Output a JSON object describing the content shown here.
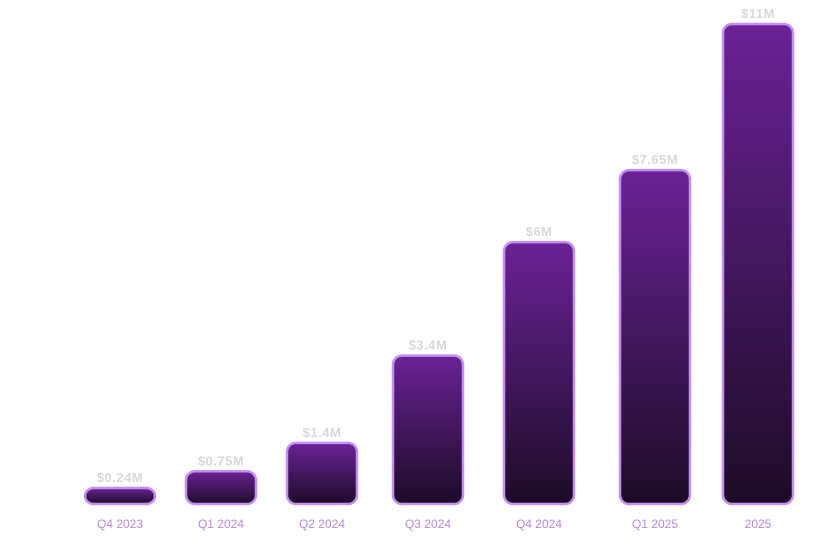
{
  "chart_data": {
    "type": "bar",
    "categories": [
      "Q4 2023",
      "Q1 2024",
      "Q2 2024",
      "Q3 2024",
      "Q4 2024",
      "Q1 2025",
      "2025"
    ],
    "values": [
      0.24,
      0.75,
      1.4,
      3.4,
      6,
      7.65,
      11
    ],
    "value_labels": [
      "$0.24M",
      "$0.75M",
      "$1.4M",
      "$3.4M",
      "$6M",
      "$7.65M",
      "$11M"
    ],
    "title": "",
    "xlabel": "",
    "ylabel": "",
    "ylim": [
      0,
      11
    ],
    "grid": false,
    "legend": "none",
    "colors": {
      "bar_top": "#6a2296",
      "bar_bottom": "#1c0c26",
      "bar_edge": "#c48ef2",
      "category_label": "#b889e6",
      "value_label": "#d8d8d8"
    }
  }
}
